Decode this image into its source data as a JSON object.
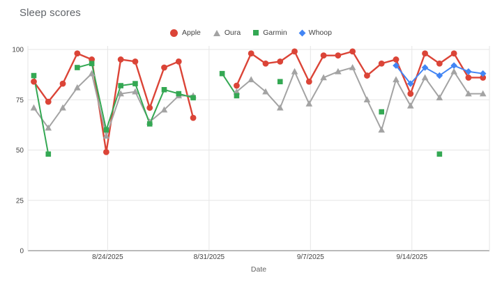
{
  "page": {
    "title": "Sleep scores"
  },
  "chart_data": {
    "type": "line",
    "title": "Sleep scores",
    "xlabel": "Date",
    "ylabel": "",
    "ylim": [
      0,
      100
    ],
    "yticks": [
      0,
      25,
      50,
      75,
      100
    ],
    "grid": true,
    "legend_position": "top",
    "x_tick_labels": [
      "8/24/2025",
      "8/31/2025",
      "9/7/2025",
      "9/14/2025"
    ],
    "x_tick_indices": [
      5,
      12,
      19,
      26
    ],
    "dates": [
      "8/19/2025",
      "8/20/2025",
      "8/21/2025",
      "8/22/2025",
      "8/23/2025",
      "8/24/2025",
      "8/25/2025",
      "8/26/2025",
      "8/27/2025",
      "8/28/2025",
      "8/29/2025",
      "8/30/2025",
      "8/31/2025",
      "9/1/2025",
      "9/2/2025",
      "9/3/2025",
      "9/4/2025",
      "9/5/2025",
      "9/6/2025",
      "9/7/2025",
      "9/8/2025",
      "9/9/2025",
      "9/10/2025",
      "9/11/2025",
      "9/12/2025",
      "9/13/2025",
      "9/14/2025",
      "9/15/2025",
      "9/16/2025",
      "9/17/2025",
      "9/18/2025",
      "9/19/2025"
    ],
    "series": [
      {
        "name": "Apple",
        "color": "#db4437",
        "marker": "circle",
        "values": [
          84,
          74,
          83,
          98,
          95,
          49,
          95,
          94,
          71,
          91,
          94,
          66,
          null,
          null,
          82,
          98,
          93,
          94,
          99,
          84,
          97,
          97,
          99,
          87,
          93,
          95,
          78,
          98,
          93,
          98,
          86,
          86
        ]
      },
      {
        "name": "Oura",
        "color": "#a3a3a3",
        "marker": "triangle",
        "values": [
          71,
          61,
          71,
          81,
          88,
          57,
          78,
          79,
          64,
          70,
          77,
          77,
          null,
          null,
          79,
          85,
          79,
          71,
          89,
          73,
          86,
          89,
          91,
          75,
          60,
          85,
          72,
          86,
          76,
          89,
          78,
          78
        ]
      },
      {
        "name": "Garmin",
        "color": "#34a853",
        "marker": "square",
        "values": [
          87,
          48,
          null,
          91,
          93,
          60,
          82,
          83,
          63,
          80,
          78,
          76,
          null,
          88,
          77,
          null,
          null,
          84,
          null,
          null,
          null,
          null,
          null,
          null,
          69,
          null,
          null,
          null,
          48,
          null,
          null,
          null
        ]
      },
      {
        "name": "Whoop",
        "color": "#4285f4",
        "marker": "diamond",
        "values": [
          null,
          null,
          null,
          null,
          null,
          null,
          null,
          null,
          null,
          null,
          null,
          null,
          null,
          null,
          null,
          null,
          null,
          null,
          null,
          null,
          null,
          null,
          null,
          null,
          null,
          92,
          83,
          91,
          87,
          92,
          89,
          88
        ]
      }
    ]
  }
}
